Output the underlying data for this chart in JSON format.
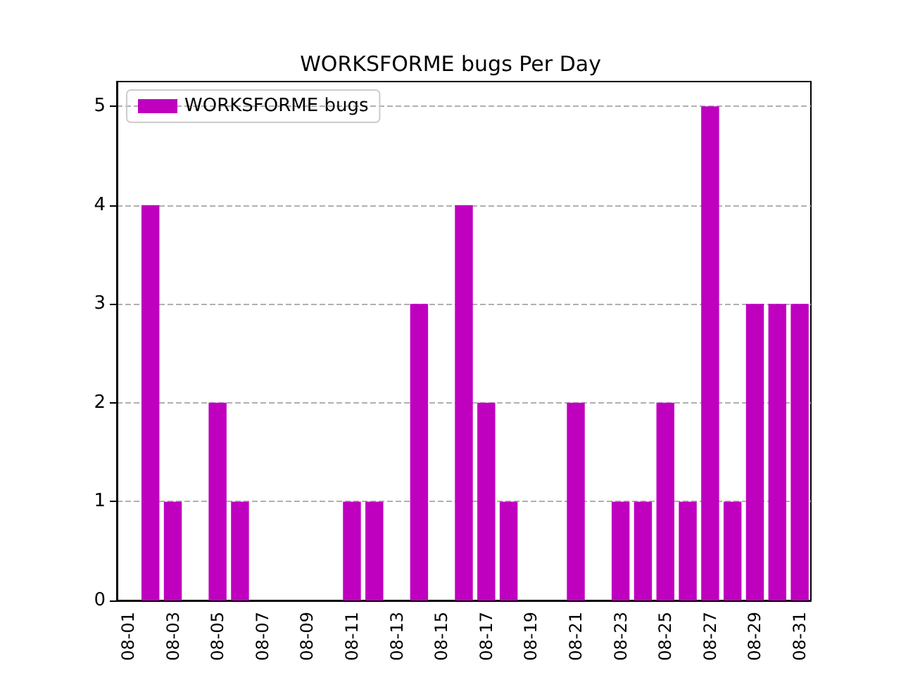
{
  "chart_data": {
    "type": "bar",
    "title": "WORKSFORME bugs Per Day",
    "categories": [
      "08-01",
      null,
      "08-03",
      null,
      "08-05",
      null,
      "08-07",
      null,
      "08-09",
      null,
      "08-11",
      null,
      "08-13",
      null,
      "08-15",
      null,
      "08-17",
      null,
      "08-19",
      null,
      "08-21",
      null,
      "08-23",
      null,
      "08-25",
      null,
      "08-27",
      null,
      "08-29",
      null,
      "08-31"
    ],
    "series": [
      {
        "name": "WORKSFORME bugs",
        "color": "#bf00bf",
        "values": [
          0,
          4,
          1,
          0,
          2,
          1,
          0,
          0,
          0,
          0,
          1,
          1,
          0,
          3,
          0,
          4,
          2,
          1,
          0,
          0,
          2,
          0,
          1,
          1,
          2,
          1,
          5,
          1,
          3,
          3,
          3
        ]
      }
    ],
    "ylim": [
      0,
      5.25
    ],
    "yticks": [
      0,
      1,
      2,
      3,
      4,
      5
    ],
    "grid": "y",
    "legend": "top left"
  }
}
